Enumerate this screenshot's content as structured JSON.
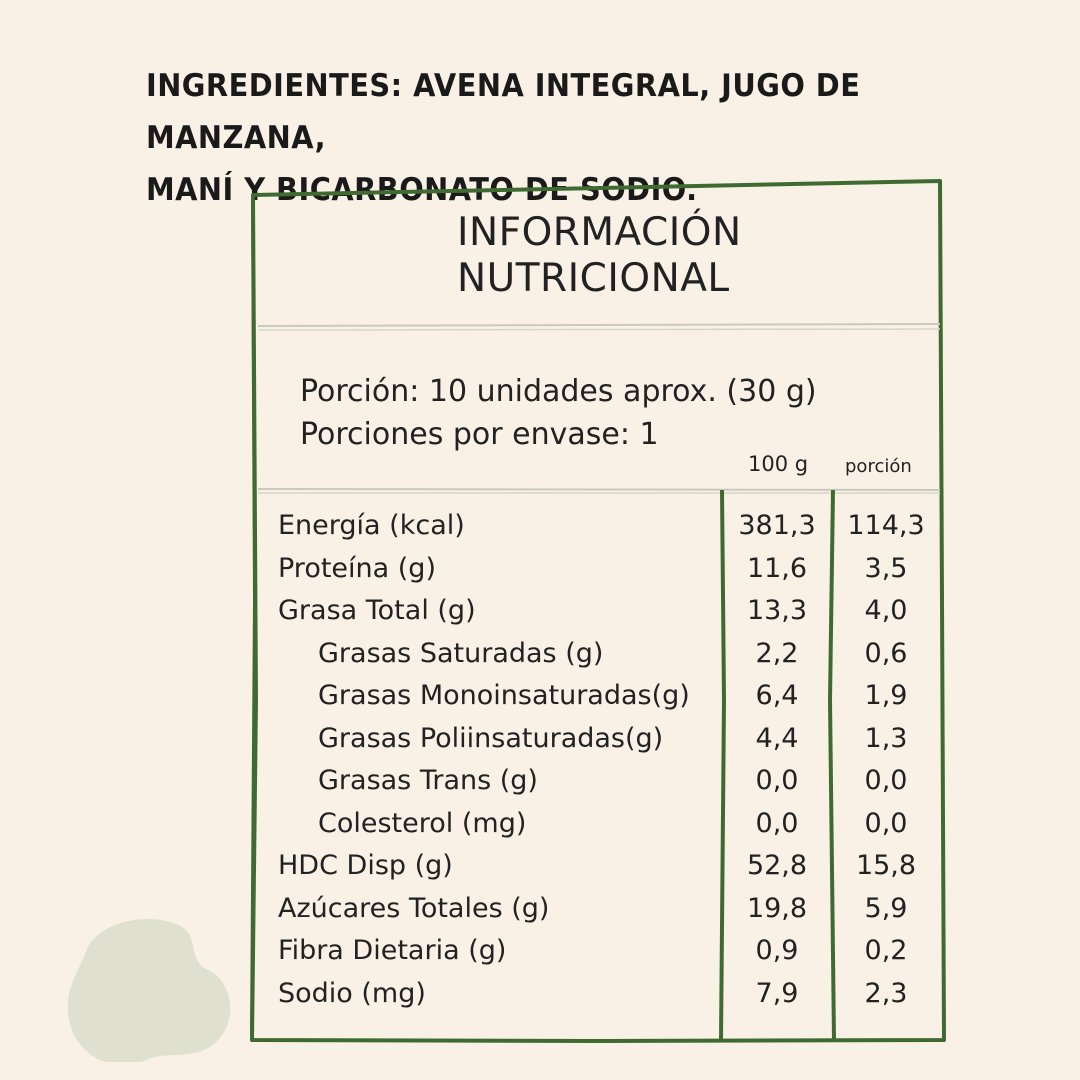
{
  "ingredients": {
    "line1": "INGREDIENTES: AVENA INTEGRAL, JUGO DE MANZANA,",
    "line2": "MANÍ Y BICARBONATO DE SODIO."
  },
  "label": {
    "title_line1": "INFORMACIÓN",
    "title_line2": "NUTRICIONAL",
    "serving_line1": "Porción: 10 unidades aprox. (30 g)",
    "serving_line2": "Porciones por envase: 1",
    "col_100g": "100 g",
    "col_portion": "porción",
    "rows": [
      {
        "name": "Energía (kcal)",
        "v100": "381,3",
        "vpor": "114,3"
      },
      {
        "name": "Proteína (g)",
        "v100": "11,6",
        "vpor": "3,5"
      },
      {
        "name": "Grasa Total (g)",
        "v100": "13,3",
        "vpor": "4,0"
      },
      {
        "name": "Grasas Saturadas (g)",
        "v100": "2,2",
        "vpor": "0,6"
      },
      {
        "name": "Grasas Monoinsaturadas(g)",
        "v100": "6,4",
        "vpor": "1,9"
      },
      {
        "name": "Grasas Poliinsaturadas(g)",
        "v100": "4,4",
        "vpor": "1,3"
      },
      {
        "name": "Grasas Trans (g)",
        "v100": "0,0",
        "vpor": "0,0"
      },
      {
        "name": "Colesterol (mg)",
        "v100": "0,0",
        "vpor": "0,0"
      },
      {
        "name": "HDC Disp (g)",
        "v100": "52,8",
        "vpor": "15,8"
      },
      {
        "name": "Azúcares Totales (g)",
        "v100": "19,8",
        "vpor": "5,9"
      },
      {
        "name": "Fibra Dietaria (g)",
        "v100": "0,9",
        "vpor": "0,2"
      },
      {
        "name": "Sodio (mg)",
        "v100": "7,9",
        "vpor": "2,3"
      }
    ]
  },
  "colors": {
    "background": "#f9f1e6",
    "border_green": "#3f6b32",
    "divider_gray": "#c9c9bd",
    "blob": "#dfe0d0"
  }
}
